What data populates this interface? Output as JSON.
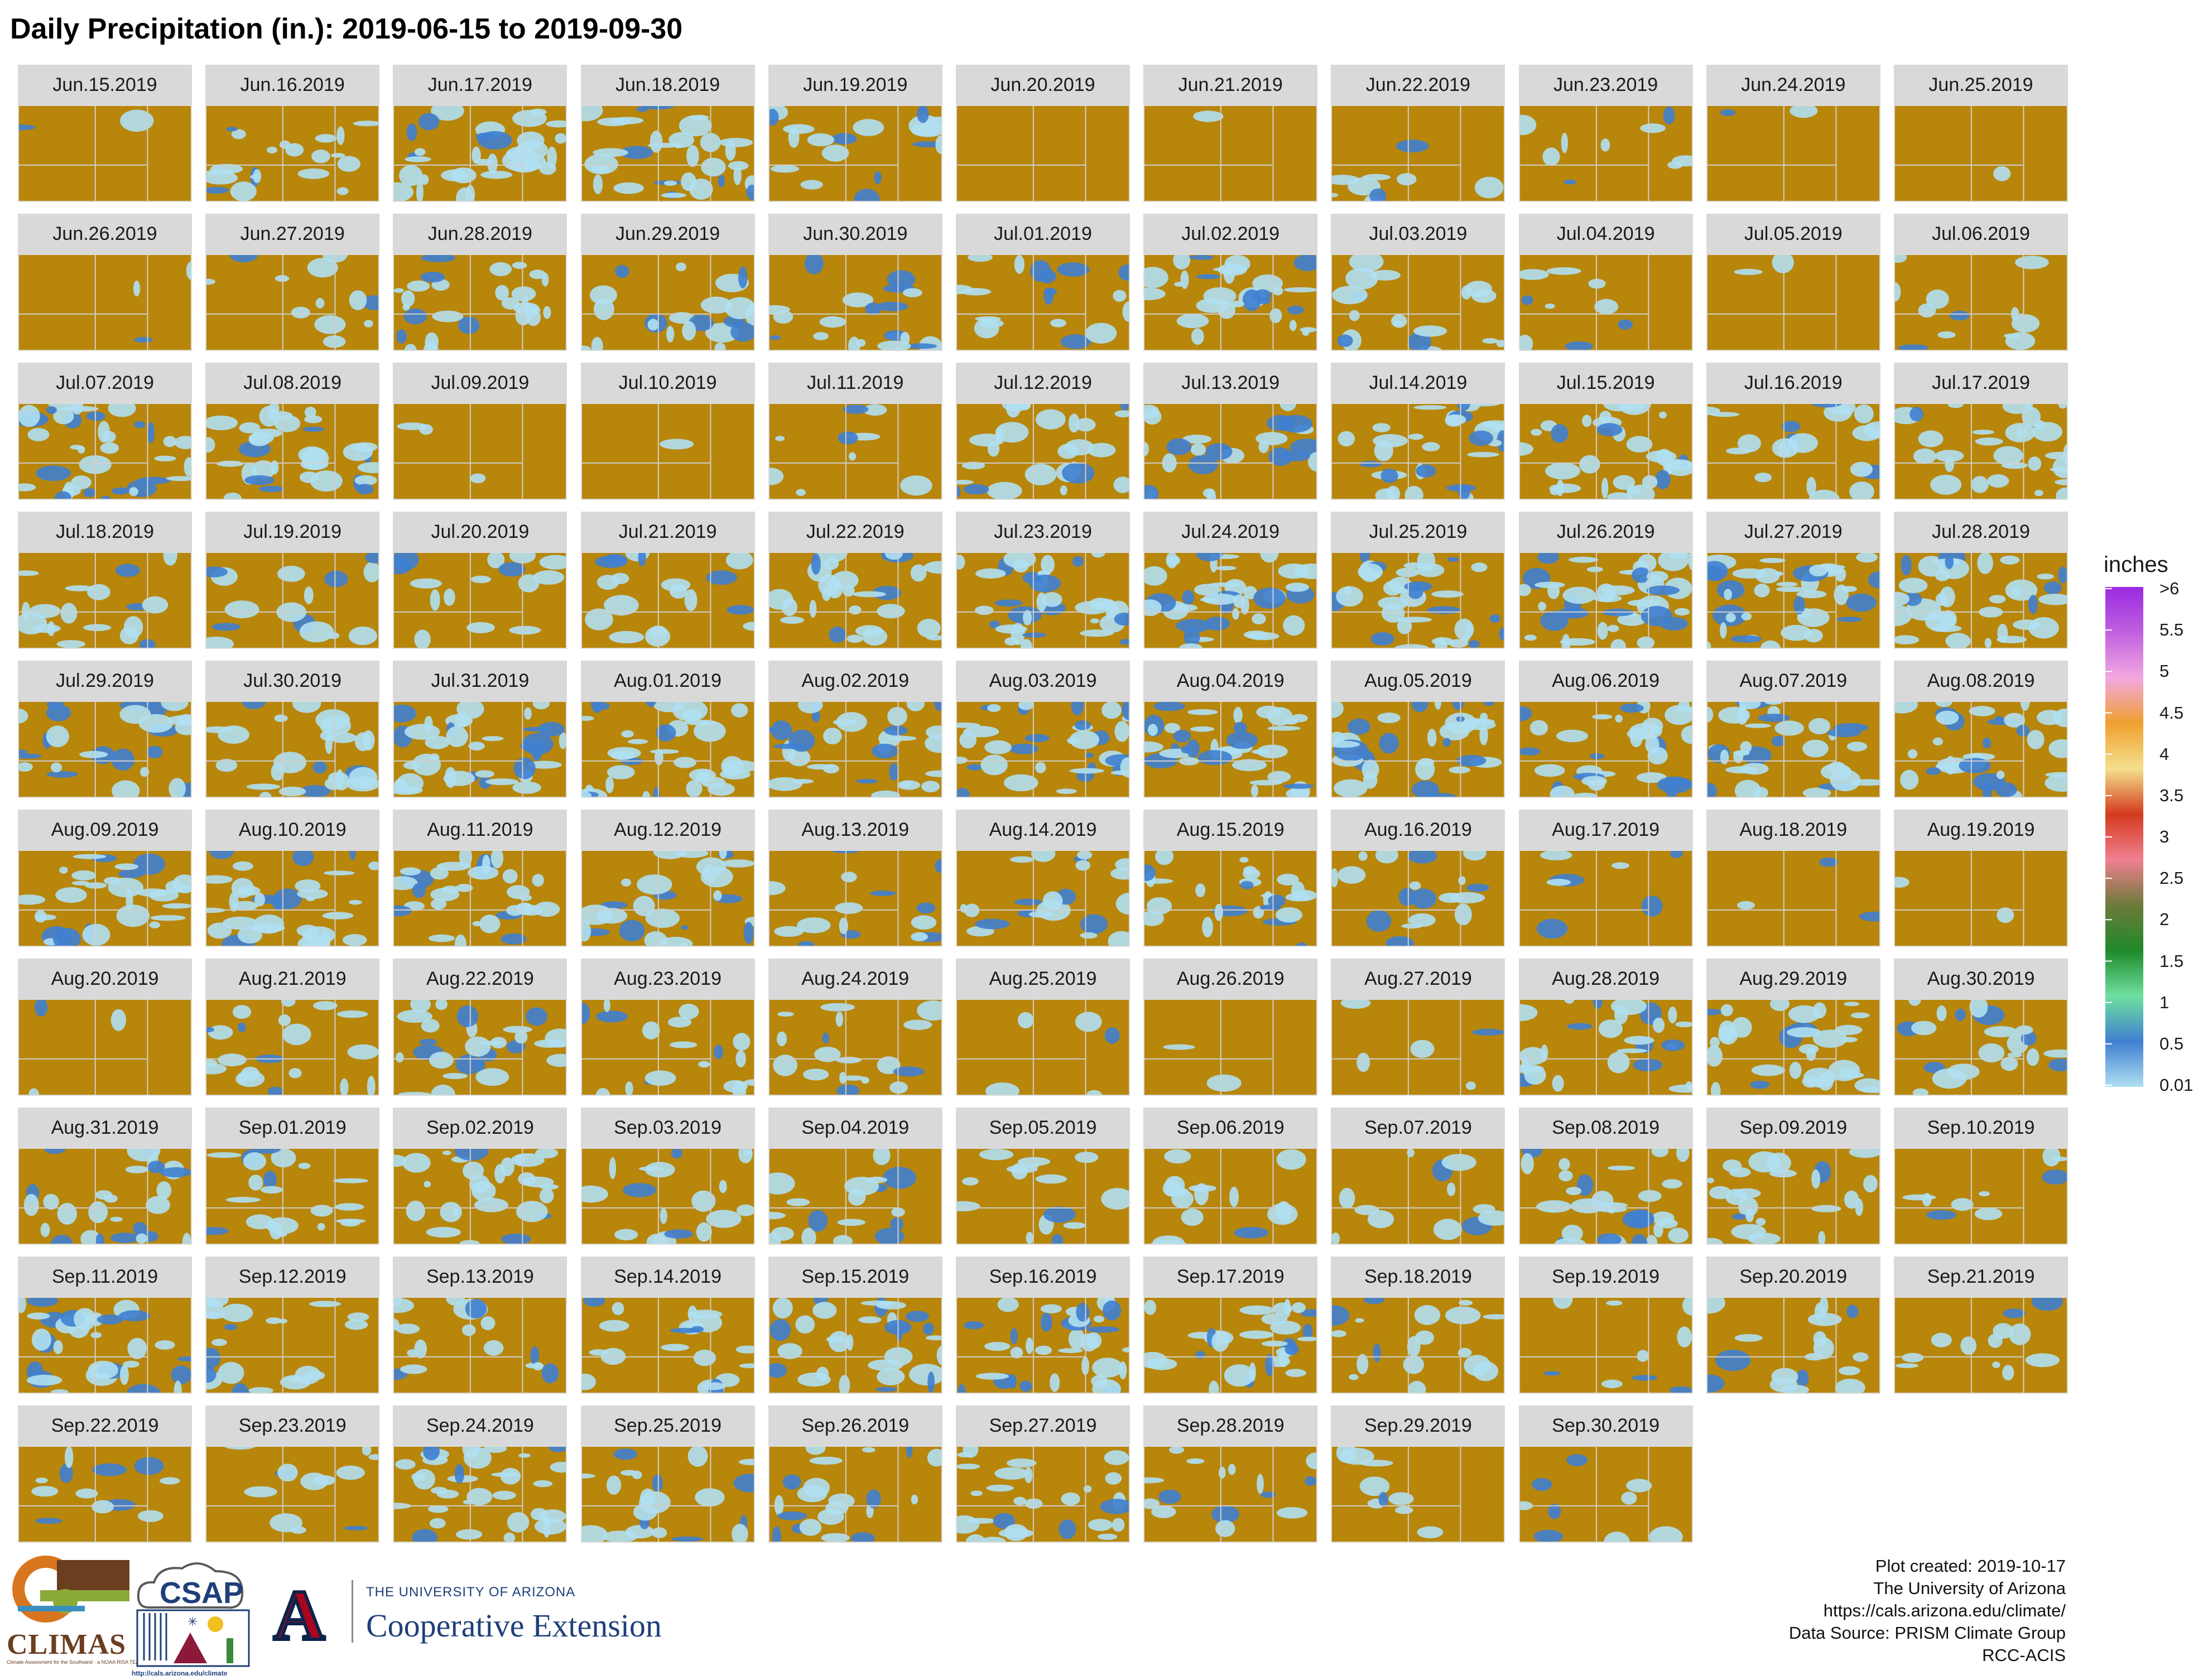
{
  "title": "Daily Precipitation (in.): 2019-06-15 to 2019-09-30",
  "chart_data": {
    "type": "heatmap",
    "description": "Small multiples of daily precipitation maps, one panel per day",
    "panels": [
      "Jun.15.2019",
      "Jun.16.2019",
      "Jun.17.2019",
      "Jun.18.2019",
      "Jun.19.2019",
      "Jun.20.2019",
      "Jun.21.2019",
      "Jun.22.2019",
      "Jun.23.2019",
      "Jun.24.2019",
      "Jun.25.2019",
      "Jun.26.2019",
      "Jun.27.2019",
      "Jun.28.2019",
      "Jun.29.2019",
      "Jun.30.2019",
      "Jul.01.2019",
      "Jul.02.2019",
      "Jul.03.2019",
      "Jul.04.2019",
      "Jul.05.2019",
      "Jul.06.2019",
      "Jul.07.2019",
      "Jul.08.2019",
      "Jul.09.2019",
      "Jul.10.2019",
      "Jul.11.2019",
      "Jul.12.2019",
      "Jul.13.2019",
      "Jul.14.2019",
      "Jul.15.2019",
      "Jul.16.2019",
      "Jul.17.2019",
      "Jul.18.2019",
      "Jul.19.2019",
      "Jul.20.2019",
      "Jul.21.2019",
      "Jul.22.2019",
      "Jul.23.2019",
      "Jul.24.2019",
      "Jul.25.2019",
      "Jul.26.2019",
      "Jul.27.2019",
      "Jul.28.2019",
      "Jul.29.2019",
      "Jul.30.2019",
      "Jul.31.2019",
      "Aug.01.2019",
      "Aug.02.2019",
      "Aug.03.2019",
      "Aug.04.2019",
      "Aug.05.2019",
      "Aug.06.2019",
      "Aug.07.2019",
      "Aug.08.2019",
      "Aug.09.2019",
      "Aug.10.2019",
      "Aug.11.2019",
      "Aug.12.2019",
      "Aug.13.2019",
      "Aug.14.2019",
      "Aug.15.2019",
      "Aug.16.2019",
      "Aug.17.2019",
      "Aug.18.2019",
      "Aug.19.2019",
      "Aug.20.2019",
      "Aug.21.2019",
      "Aug.22.2019",
      "Aug.23.2019",
      "Aug.24.2019",
      "Aug.25.2019",
      "Aug.26.2019",
      "Aug.27.2019",
      "Aug.28.2019",
      "Aug.29.2019",
      "Aug.30.2019",
      "Aug.31.2019",
      "Sep.01.2019",
      "Sep.02.2019",
      "Sep.03.2019",
      "Sep.04.2019",
      "Sep.05.2019",
      "Sep.06.2019",
      "Sep.07.2019",
      "Sep.08.2019",
      "Sep.09.2019",
      "Sep.10.2019",
      "Sep.11.2019",
      "Sep.12.2019",
      "Sep.13.2019",
      "Sep.14.2019",
      "Sep.15.2019",
      "Sep.16.2019",
      "Sep.17.2019",
      "Sep.18.2019",
      "Sep.19.2019",
      "Sep.20.2019",
      "Sep.21.2019",
      "Sep.22.2019",
      "Sep.23.2019",
      "Sep.24.2019",
      "Sep.25.2019",
      "Sep.26.2019",
      "Sep.27.2019",
      "Sep.28.2019",
      "Sep.29.2019",
      "Sep.30.2019"
    ],
    "rain_coverage": [
      0.03,
      0.35,
      0.55,
      0.55,
      0.3,
      0,
      0.02,
      0.15,
      0.15,
      0.03,
      0.02,
      0.05,
      0.2,
      0.45,
      0.35,
      0.35,
      0.3,
      0.5,
      0.3,
      0.15,
      0.03,
      0.2,
      0.6,
      0.55,
      0.05,
      0.02,
      0.15,
      0.45,
      0.4,
      0.55,
      0.55,
      0.35,
      0.5,
      0.3,
      0.25,
      0.25,
      0.3,
      0.45,
      0.6,
      0.65,
      0.6,
      0.7,
      0.65,
      0.6,
      0.45,
      0.45,
      0.6,
      0.6,
      0.55,
      0.6,
      0.6,
      0.55,
      0.55,
      0.6,
      0.55,
      0.5,
      0.55,
      0.55,
      0.45,
      0.25,
      0.35,
      0.45,
      0.3,
      0.12,
      0.05,
      0.03,
      0.05,
      0.35,
      0.45,
      0.3,
      0.3,
      0.08,
      0.03,
      0.08,
      0.45,
      0.55,
      0.35,
      0.45,
      0.35,
      0.45,
      0.3,
      0.3,
      0.25,
      0.25,
      0.2,
      0.5,
      0.4,
      0.15,
      0.55,
      0.35,
      0.3,
      0.35,
      0.5,
      0.6,
      0.5,
      0.3,
      0.15,
      0.3,
      0.2,
      0.2,
      0.2,
      0.55,
      0.35,
      0.35,
      0.45,
      0.25,
      0.15,
      0.15
    ],
    "colorbar": {
      "title": "inches",
      "ticks": [
        ">6",
        "5.5",
        "5",
        "4.5",
        "4",
        "3.5",
        "3",
        "2.5",
        "2",
        "1.5",
        "1",
        "0.5",
        "0.01"
      ],
      "range": [
        0.01,
        6
      ],
      "colors": [
        "#b0e0f2",
        "#3f7fd0",
        "#6fe0a0",
        "#1f8a2a",
        "#6d7a3a",
        "#f08090",
        "#d43a1e",
        "#f4e08c",
        "#f0a030",
        "#f2a8e0",
        "#c060e0",
        "#9a2ae0"
      ]
    },
    "background_color": "#b8860b",
    "xlabel": "",
    "ylabel": ""
  },
  "footer": {
    "line1": "Plot created: 2019-10-17",
    "line2": "The University of Arizona",
    "line3": "https://cals.arizona.edu/climate/",
    "line4": "Data Source: PRISM Climate Group",
    "line5": "RCC-ACIS"
  },
  "logos": {
    "climas": "CLIMAS",
    "climas_sub": "Climate Assessment for the Southwest · a NOAA RISA TEAM",
    "csap": "CSAP",
    "csap_url": "http://cals.arizona.edu/climate",
    "ua_small": "THE UNIVERSITY OF ARIZONA",
    "ua_big": "Cooperative Extension",
    "ua_letter": "A"
  }
}
